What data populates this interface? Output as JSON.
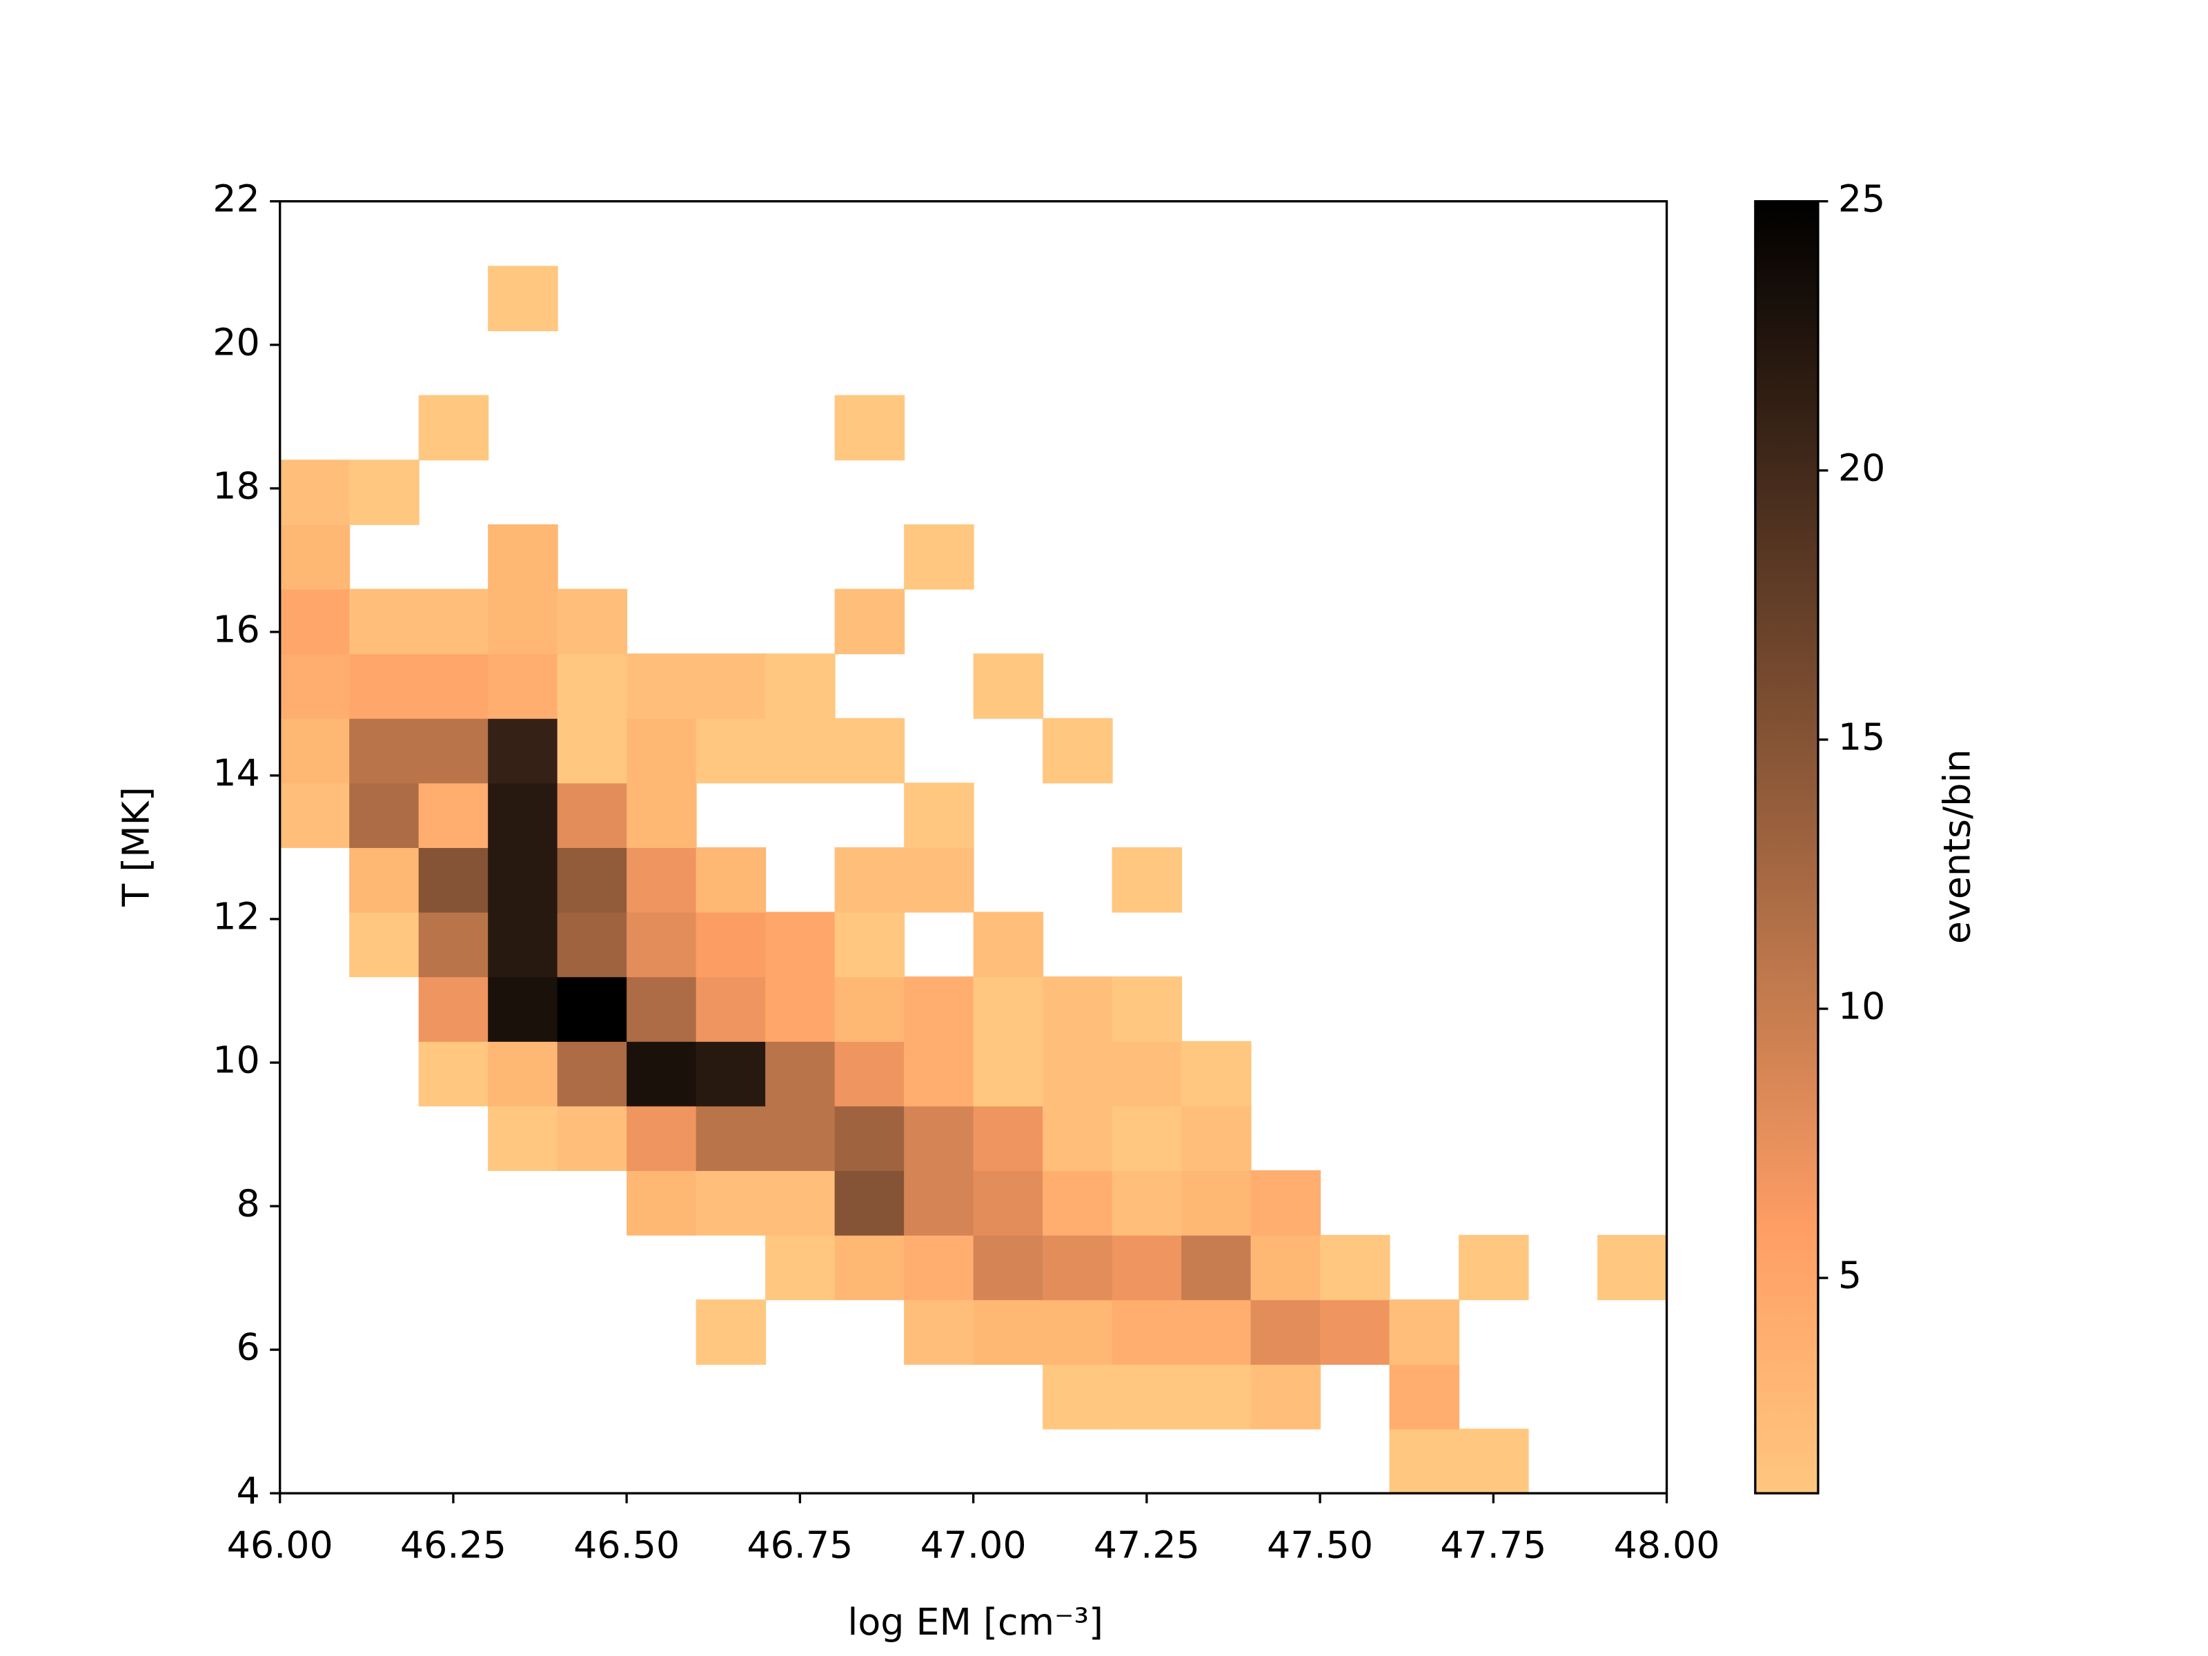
{
  "chart_data": {
    "type": "hist2d",
    "x_label": "log EM [cm⁻³]",
    "y_label": "T [MK]",
    "colorbar_label": "events/bin",
    "colormap": "copper_r",
    "x_bins": [
      46,
      46.1,
      46.2,
      46.3,
      46.4,
      46.5,
      46.6,
      46.7,
      46.8,
      46.9,
      47,
      47.1,
      47.2,
      47.3,
      47.4,
      47.5,
      47.6,
      47.7,
      47.8,
      47.9,
      48
    ],
    "y_bins": [
      4,
      4.9,
      5.8,
      6.7,
      7.6,
      8.5,
      9.4,
      10.3,
      11.2,
      12.1,
      13,
      13.9,
      14.8,
      15.7,
      16.6,
      17.5,
      18.4,
      19.3,
      20.2,
      21.1,
      22
    ],
    "counts": [
      [
        null,
        null,
        null,
        null,
        null,
        null,
        null,
        null,
        null,
        null,
        null,
        null,
        null,
        null,
        null,
        null,
        1,
        1,
        null,
        null
      ],
      [
        null,
        null,
        null,
        null,
        null,
        null,
        null,
        null,
        null,
        null,
        null,
        1,
        1,
        1,
        2,
        null,
        4,
        null,
        null,
        null
      ],
      [
        null,
        null,
        null,
        null,
        null,
        null,
        1,
        null,
        null,
        2,
        3,
        3,
        4,
        4,
        8,
        7,
        2,
        null,
        null,
        null
      ],
      [
        null,
        null,
        null,
        null,
        null,
        null,
        null,
        1,
        3,
        4,
        9,
        8,
        7,
        10,
        3,
        1,
        null,
        1,
        null,
        1
      ],
      [
        null,
        null,
        null,
        null,
        null,
        3,
        2,
        2,
        15,
        9,
        8,
        4,
        2,
        3,
        4,
        null,
        null,
        null,
        null,
        null
      ],
      [
        null,
        null,
        null,
        1,
        2,
        7,
        11,
        11,
        13,
        9,
        7,
        2,
        1,
        2,
        null,
        null,
        null,
        null,
        null,
        null
      ],
      [
        null,
        null,
        1,
        3,
        12,
        23,
        22,
        11,
        7,
        4,
        1,
        2,
        2,
        1,
        null,
        null,
        null,
        null,
        null,
        null
      ],
      [
        null,
        null,
        7,
        23,
        25,
        12,
        7,
        5,
        3,
        4,
        1,
        2,
        1,
        null,
        null,
        null,
        null,
        null,
        null,
        null
      ],
      [
        null,
        1,
        11,
        22,
        13,
        8,
        6,
        5,
        1,
        null,
        2,
        null,
        null,
        null,
        null,
        null,
        null,
        null,
        null,
        null
      ],
      [
        null,
        3,
        15,
        22,
        14,
        7,
        3,
        null,
        2,
        2,
        null,
        null,
        1,
        null,
        null,
        null,
        null,
        null,
        null,
        null
      ],
      [
        2,
        12,
        4,
        22,
        8,
        3,
        null,
        null,
        null,
        1,
        null,
        null,
        null,
        null,
        null,
        null,
        null,
        null,
        null,
        null
      ],
      [
        3,
        11,
        11,
        21,
        1,
        3,
        1,
        1,
        1,
        null,
        null,
        1,
        null,
        null,
        null,
        null,
        null,
        null,
        null,
        null
      ],
      [
        4,
        5,
        5,
        4,
        1,
        2,
        2,
        1,
        null,
        null,
        1,
        null,
        null,
        null,
        null,
        null,
        null,
        null,
        null,
        null
      ],
      [
        5,
        2,
        2,
        3,
        2,
        null,
        null,
        null,
        2,
        null,
        null,
        null,
        null,
        null,
        null,
        null,
        null,
        null,
        null,
        null
      ],
      [
        3,
        null,
        null,
        3,
        null,
        null,
        null,
        null,
        null,
        1,
        null,
        null,
        null,
        null,
        null,
        null,
        null,
        null,
        null,
        null
      ],
      [
        2,
        1,
        null,
        null,
        null,
        null,
        null,
        null,
        null,
        null,
        null,
        null,
        null,
        null,
        null,
        null,
        null,
        null,
        null,
        null
      ],
      [
        null,
        null,
        1,
        null,
        null,
        null,
        null,
        null,
        1,
        null,
        null,
        null,
        null,
        null,
        null,
        null,
        null,
        null,
        null,
        null
      ],
      [
        null,
        null,
        null,
        null,
        null,
        null,
        null,
        null,
        null,
        null,
        null,
        null,
        null,
        null,
        null,
        null,
        null,
        null,
        null,
        null
      ],
      [
        null,
        null,
        null,
        1,
        null,
        null,
        null,
        null,
        null,
        null,
        null,
        null,
        null,
        null,
        null,
        null,
        null,
        null,
        null,
        null
      ],
      [
        null,
        null,
        null,
        null,
        null,
        null,
        null,
        null,
        null,
        null,
        null,
        null,
        null,
        null,
        null,
        null,
        null,
        null,
        null,
        null
      ]
    ],
    "xlim": [
      46,
      48
    ],
    "ylim": [
      4,
      22
    ],
    "xticks": [
      {
        "value": 46,
        "label": "46.00"
      },
      {
        "value": 46.25,
        "label": "46.25"
      },
      {
        "value": 46.5,
        "label": "46.50"
      },
      {
        "value": 46.75,
        "label": "46.75"
      },
      {
        "value": 47,
        "label": "47.00"
      },
      {
        "value": 47.25,
        "label": "47.25"
      },
      {
        "value": 47.5,
        "label": "47.50"
      },
      {
        "value": 47.75,
        "label": "47.75"
      },
      {
        "value": 48,
        "label": "48.00"
      }
    ],
    "yticks": [
      4,
      6,
      8,
      10,
      12,
      14,
      16,
      18,
      20,
      22
    ],
    "clim": [
      1,
      25
    ],
    "cticks": [
      5,
      10,
      15,
      20,
      25
    ]
  }
}
